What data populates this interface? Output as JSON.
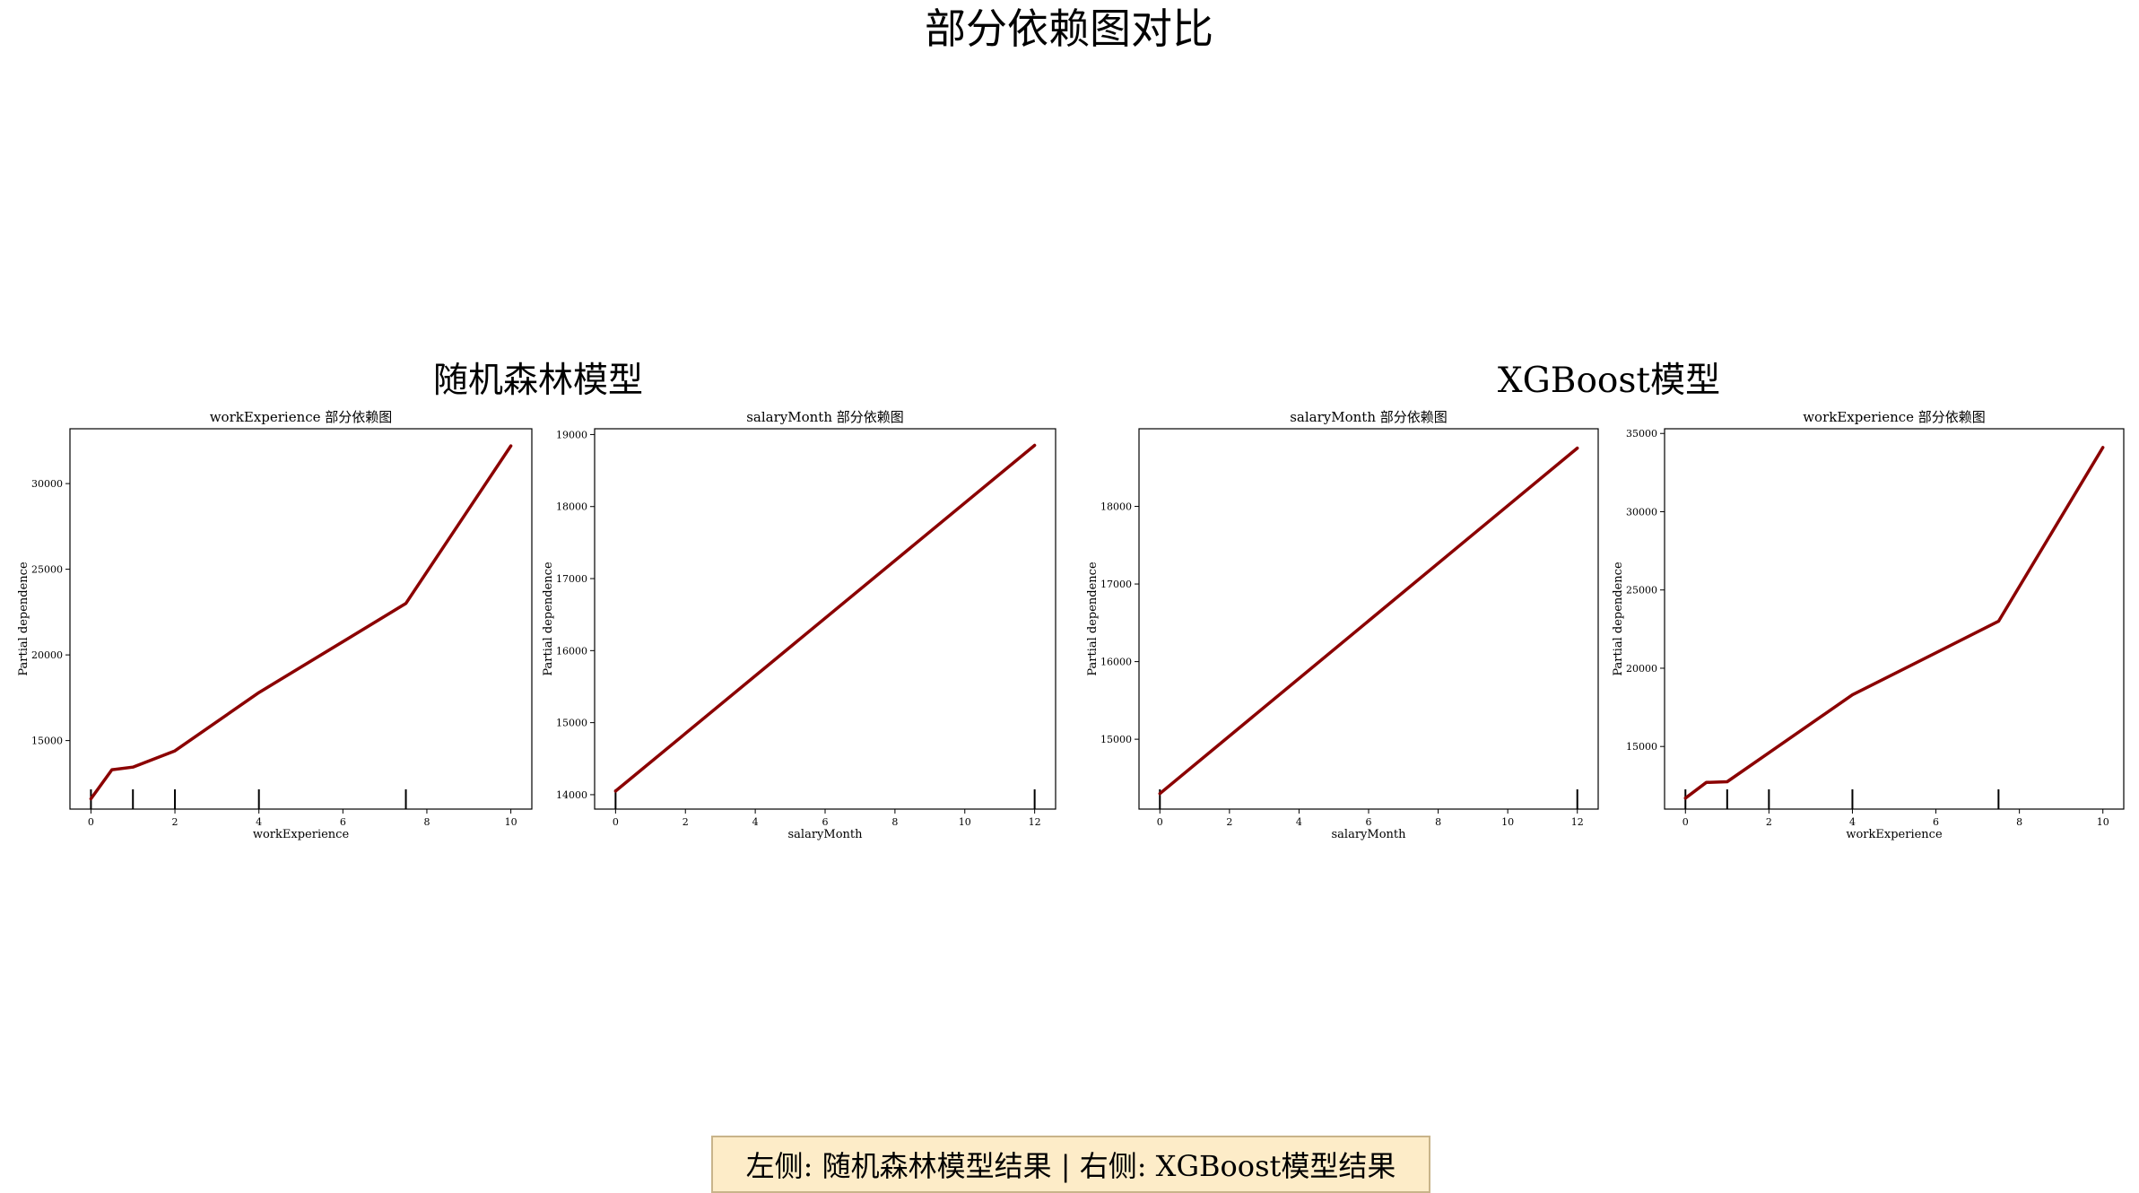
{
  "figure": {
    "title": "部分依赖图对比",
    "left_group_title": "随机森林模型",
    "right_group_title": "XGBoost模型",
    "footer": "左侧: 随机森林模型结果 | 右侧: XGBoost模型结果"
  },
  "colors": {
    "line": "#8b0000",
    "axes": "#000000",
    "footer_bg": "#fdecc8"
  },
  "chart_data": [
    {
      "type": "line",
      "group": "随机森林模型",
      "title": "workExperience 部分依赖图",
      "xlabel": "workExperience",
      "ylabel": "Partial dependence",
      "xlim": [
        -0.5,
        10.5
      ],
      "ylim": [
        11000,
        33200
      ],
      "xticks": [
        0,
        2,
        4,
        6,
        8,
        10
      ],
      "yticks": [
        15000,
        20000,
        25000,
        30000
      ],
      "x": [
        0,
        0.5,
        1,
        2,
        4,
        7.5,
        10
      ],
      "y": [
        11600,
        13300,
        13450,
        14400,
        17800,
        23000,
        32200
      ],
      "rug": [
        0,
        1,
        2,
        4,
        7.5
      ]
    },
    {
      "type": "line",
      "group": "随机森林模型",
      "title": "salaryMonth 部分依赖图",
      "xlabel": "salaryMonth",
      "ylabel": "Partial dependence",
      "xlim": [
        -0.6,
        12.6
      ],
      "ylim": [
        13800,
        19080
      ],
      "xticks": [
        0,
        2,
        4,
        6,
        8,
        10,
        12
      ],
      "yticks": [
        14000,
        15000,
        16000,
        17000,
        18000,
        19000
      ],
      "x": [
        0,
        12
      ],
      "y": [
        14050,
        18850
      ],
      "rug": [
        0,
        12
      ]
    },
    {
      "type": "line",
      "group": "XGBoost模型",
      "title": "salaryMonth 部分依赖图",
      "xlabel": "salaryMonth",
      "ylabel": "Partial dependence",
      "xlim": [
        -0.6,
        12.6
      ],
      "ylim": [
        14100,
        19000
      ],
      "xticks": [
        0,
        2,
        4,
        6,
        8,
        10,
        12
      ],
      "yticks": [
        15000,
        16000,
        17000,
        18000
      ],
      "x": [
        0,
        12
      ],
      "y": [
        14300,
        18750
      ],
      "rug": [
        0,
        12
      ]
    },
    {
      "type": "line",
      "group": "XGBoost模型",
      "title": "workExperience 部分依赖图",
      "xlabel": "workExperience",
      "ylabel": "Partial dependence",
      "xlim": [
        -0.5,
        10.5
      ],
      "ylim": [
        11000,
        35300
      ],
      "xticks": [
        0,
        2,
        4,
        6,
        8,
        10
      ],
      "yticks": [
        15000,
        20000,
        25000,
        30000,
        35000
      ],
      "x": [
        0,
        0.5,
        1,
        2,
        4,
        7.5,
        10
      ],
      "y": [
        11700,
        12700,
        12750,
        14600,
        18300,
        23000,
        34100
      ],
      "rug": [
        0,
        1,
        2,
        4,
        7.5
      ]
    }
  ]
}
